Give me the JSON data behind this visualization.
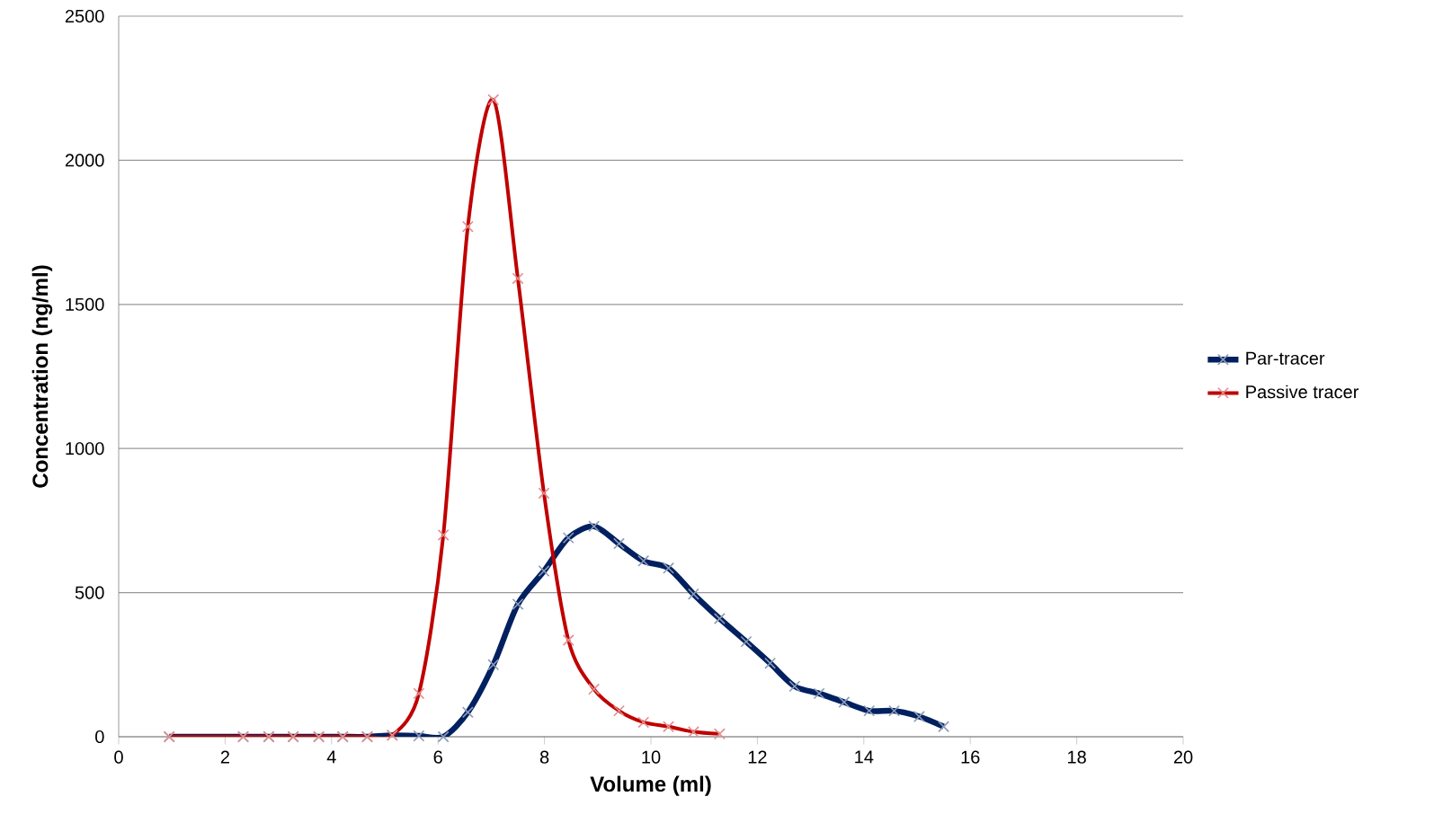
{
  "chart_data": {
    "type": "line",
    "xlabel": "Volume (ml)",
    "ylabel": "Concentration (ng/ml)",
    "xlim": [
      0,
      20
    ],
    "xticks": [
      0,
      2,
      4,
      6,
      8,
      10,
      12,
      14,
      16,
      18,
      20
    ],
    "ylim": [
      0,
      2500
    ],
    "yticks": [
      0,
      500,
      1000,
      1500,
      2000,
      2500
    ],
    "grid": "y",
    "legend": "right",
    "marker": "cross",
    "line_style": "solid",
    "series": [
      {
        "name": "Par-tracer",
        "color": "#002060",
        "x": [
          0.95,
          2.34,
          2.82,
          3.28,
          3.76,
          4.21,
          4.67,
          5.14,
          5.64,
          6.1,
          6.56,
          7.04,
          7.5,
          7.99,
          8.45,
          8.93,
          9.4,
          9.86,
          10.33,
          10.8,
          11.29,
          11.79,
          12.24,
          12.7,
          13.16,
          13.63,
          14.1,
          14.57,
          15.04,
          15.5
        ],
        "values": [
          0,
          0,
          0,
          0,
          0,
          0,
          0,
          5,
          3,
          0,
          85,
          250,
          460,
          575,
          690,
          730,
          670,
          610,
          585,
          495,
          410,
          330,
          255,
          175,
          150,
          120,
          90,
          90,
          70,
          35
        ]
      },
      {
        "name": "Passive tracer",
        "color": "#c00000",
        "x": [
          0.95,
          2.34,
          2.82,
          3.28,
          3.76,
          4.21,
          4.67,
          5.14,
          5.64,
          6.1,
          6.56,
          7.04,
          7.5,
          7.99,
          8.45,
          8.93,
          9.4,
          9.86,
          10.33,
          10.8,
          11.29
        ],
        "values": [
          0,
          0,
          0,
          0,
          0,
          0,
          0,
          5,
          150,
          700,
          1770,
          2210,
          1590,
          845,
          335,
          165,
          90,
          50,
          35,
          17,
          10
        ]
      }
    ]
  }
}
